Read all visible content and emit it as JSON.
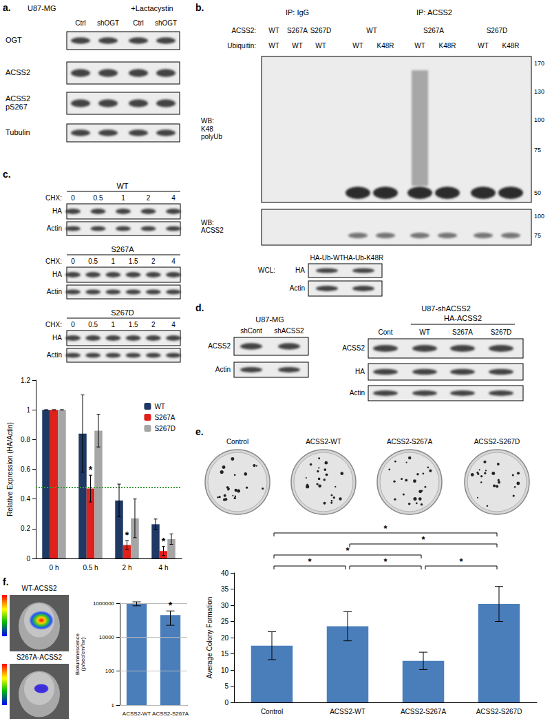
{
  "panels": {
    "a": {
      "label": "a.",
      "title": "U87-MG",
      "treatment": "+Lactacystin",
      "lanes": [
        "Ctrl",
        "shOGT",
        "Ctrl",
        "shOGT"
      ],
      "blots": [
        "OGT",
        "ACSS2",
        "ACSS2 pS267",
        "Tubulin"
      ]
    },
    "b": {
      "label": "b.",
      "ip_groups": [
        {
          "name": "IP: IgG",
          "acss2": [
            "WT",
            "S267A",
            "S267D"
          ],
          "ubiquitin": [
            "WT",
            "WT",
            "WT"
          ]
        },
        {
          "name": "IP: ACSS2",
          "acss2": [
            "WT",
            "S267A",
            "S267D"
          ],
          "ubiquitin": [
            "WT",
            "K48R",
            "WT",
            "K48R",
            "WT",
            "K48R"
          ]
        }
      ],
      "row_labels": [
        "ACSS2:",
        "Ubiquitin:"
      ],
      "blots": [
        {
          "label": "WB: K48 polyUb",
          "markers": [
            170,
            130,
            100,
            75,
            50
          ]
        },
        {
          "label": "WB: ACSS2",
          "markers": [
            100,
            75
          ]
        }
      ],
      "wcl": {
        "label": "WCL:",
        "lanes": [
          "HA-Ub-WT",
          "HA-Ub-K48R"
        ],
        "blots": [
          "HA",
          "Actin"
        ]
      }
    },
    "c": {
      "label": "c.",
      "chx_label": "CHX:",
      "blot_sets": [
        {
          "title": "WT",
          "times": [
            "0",
            "0.5",
            "1",
            "2",
            "4"
          ]
        },
        {
          "title": "S267A",
          "times": [
            "0",
            "0.5",
            "1",
            "1.5",
            "2",
            "4"
          ]
        },
        {
          "title": "S267D",
          "times": [
            "0",
            "0.5",
            "1",
            "1.5",
            "2",
            "4"
          ]
        }
      ],
      "blots": [
        "HA",
        "Actin"
      ]
    },
    "d": {
      "label": "d.",
      "left": {
        "title": "U87-MG",
        "lanes": [
          "shCont",
          "shACSS2"
        ],
        "blots": [
          "ACSS2",
          "Actin"
        ]
      },
      "right": {
        "title": "U87-shACSS2",
        "group": "HA-ACSS2",
        "lanes": [
          "Cont",
          "WT",
          "S267A",
          "S267D"
        ],
        "blots": [
          "ACSS2",
          "HA",
          "Actin"
        ]
      }
    },
    "e": {
      "label": "e.",
      "plates": [
        "Control",
        "ACSS2-WT",
        "ACSS2-S267A",
        "ACSS2-S267D"
      ]
    },
    "f": {
      "label": "f.",
      "images": [
        "WT-ACSS2",
        "S267A-ACSS2"
      ]
    }
  },
  "chart_data": [
    {
      "type": "bar",
      "ylabel": "Relative Expression (HA/Actin)",
      "categories": [
        "0 h",
        "0.5 h",
        "2 h",
        "4 h"
      ],
      "series": [
        {
          "name": "WT",
          "color": "#1f3864",
          "values": [
            1,
            0.84,
            0.39,
            0.23
          ],
          "errors": [
            0,
            0.26,
            0.11,
            0.035
          ]
        },
        {
          "name": "S267A",
          "color": "#e0201b",
          "values": [
            1,
            0.47,
            0.09,
            0.05
          ],
          "errors": [
            0,
            0.09,
            0.03,
            0.03
          ],
          "significance": [
            null,
            "*",
            "*",
            "*"
          ]
        },
        {
          "name": "S267D",
          "color": "#a6a6a6",
          "values": [
            1,
            0.86,
            0.27,
            0.13
          ],
          "errors": [
            0,
            0.11,
            0.13,
            0.035
          ]
        }
      ],
      "reference_line": {
        "value": 0.48,
        "color": "#3a9b3a",
        "line_style": "dotted"
      },
      "ylim": [
        0,
        1.2
      ],
      "yticks": [
        0,
        0.2,
        0.4,
        0.6,
        0.8,
        1,
        1.2
      ],
      "grid": false,
      "legend": "top-right"
    },
    {
      "type": "bar",
      "ylabel": "Average Colony Formation",
      "categories": [
        "Control",
        "ACSS2-WT",
        "ACSS2-S267A",
        "ACSS2-S267D"
      ],
      "values": [
        17.5,
        23.5,
        12.8,
        30.4
      ],
      "errors": [
        4.3,
        4.5,
        2.7,
        5.4
      ],
      "color": "#4a7ebb",
      "comparisons": [
        {
          "pair": [
            "Control",
            "ACSS2-WT"
          ],
          "label": "*"
        },
        {
          "pair": [
            "ACSS2-WT",
            "ACSS2-S267A"
          ],
          "label": "*"
        },
        {
          "pair": [
            "ACSS2-S267A",
            "ACSS2-S267D"
          ],
          "label": "*"
        },
        {
          "pair": [
            "Control",
            "ACSS2-S267A"
          ],
          "label": "*"
        },
        {
          "pair": [
            "ACSS2-WT",
            "ACSS2-S267D"
          ],
          "label": "*"
        },
        {
          "pair": [
            "Control",
            "ACSS2-S267D"
          ],
          "label": "*"
        }
      ],
      "ylim": [
        0,
        40
      ],
      "yticks": [
        0,
        5,
        10,
        15,
        20,
        25,
        30,
        35,
        40
      ],
      "grid": false
    },
    {
      "type": "bar",
      "log": "y",
      "ylabel": "Bioluminescence\n(p/sec/cm²/sr)",
      "categories": [
        "ACSS2-WT",
        "ACSS2-S267A"
      ],
      "values": [
        950000,
        200000
      ],
      "errors": [
        250000,
        150000
      ],
      "significance": [
        null,
        "*"
      ],
      "color": "#4a7ebb",
      "ylim": [
        1,
        1000000
      ],
      "yticks": [
        1,
        100,
        10000,
        1000000
      ],
      "grid": true
    }
  ]
}
